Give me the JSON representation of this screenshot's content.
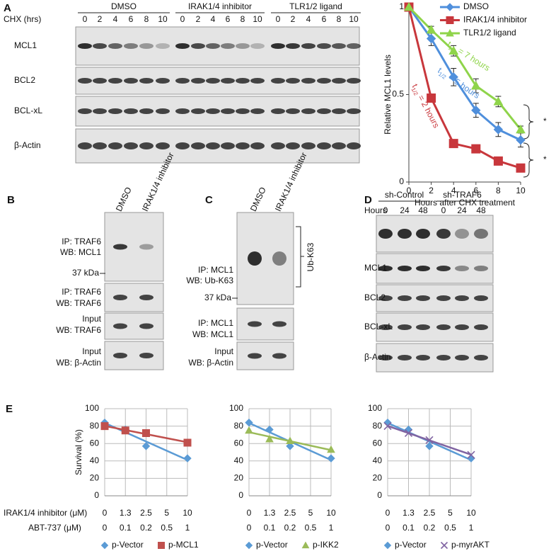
{
  "panel_a": {
    "label": "A",
    "treatment_label": "CHX (hrs)",
    "groups": [
      {
        "name": "DMSO",
        "lanes": [
          "0",
          "2",
          "4",
          "6",
          "8",
          "10"
        ]
      },
      {
        "name": "IRAK1/4 inhibitor",
        "lanes": [
          "0",
          "2",
          "4",
          "6",
          "8",
          "10"
        ]
      },
      {
        "name": "TLR1/2 ligand",
        "lanes": [
          "0",
          "2",
          "4",
          "6",
          "8",
          "10"
        ]
      }
    ],
    "rows": [
      "MCL1",
      "BCL2",
      "BCL-xL",
      "β-Actin"
    ]
  },
  "panel_b": {
    "label": "B",
    "columns": [
      "DMSO",
      "IRAK1/4 inhibitor"
    ],
    "rows": [
      [
        "IP: TRAF6",
        "WB: MCL1"
      ],
      [
        "IP: TRAF6",
        "WB: TRAF6"
      ],
      [
        "Input",
        "WB: TRAF6"
      ],
      [
        "Input",
        "WB: β-Actin"
      ]
    ],
    "marker": "37 kDa"
  },
  "panel_c": {
    "label": "C",
    "columns": [
      "DMSO",
      "IRAK1/4 inhibitor"
    ],
    "rows": [
      [
        "IP: MCL1",
        "WB: Ub-K63"
      ],
      [
        "IP: MCL1",
        "WB: MCL1"
      ],
      [
        "Input",
        "WB: β-Actin"
      ]
    ],
    "marker": "37 kDa",
    "bracket": "Ub-K63"
  },
  "panel_d": {
    "label": "D",
    "hours_label": "Hours",
    "groups": [
      {
        "name": "sh-Control",
        "lanes": [
          "0",
          "24",
          "48"
        ]
      },
      {
        "name": "sh-TRAF6",
        "lanes": [
          "0",
          "24",
          "48"
        ]
      }
    ],
    "rows": [
      "MCL1",
      "BCL2",
      "BCL-xL",
      "β-Actin"
    ]
  },
  "panel_e": {
    "label": "E",
    "x_labels": [
      "IRAK1/4 inhibitor (μM)",
      "ABT-737 (μM)"
    ]
  },
  "chart_data": [
    {
      "type": "line",
      "x_label": "Hours after CHX treatment",
      "y_label": "Relative MCL1 levels",
      "x": [
        0,
        2,
        4,
        6,
        8,
        10
      ],
      "xlim": [
        0,
        10
      ],
      "xticks": [
        0,
        2,
        4,
        6,
        8,
        10
      ],
      "ylim": [
        0,
        1
      ],
      "yticks": [
        0,
        0.5,
        1
      ],
      "legend": "upper right",
      "series": [
        {
          "name": "DMSO",
          "color": "#4f8fdc",
          "marker": "diamond",
          "values": [
            1,
            0.82,
            0.6,
            0.41,
            0.3,
            0.24
          ],
          "errors": [
            0,
            0.04,
            0.05,
            0.04,
            0.04,
            0.04
          ]
        },
        {
          "name": "IRAK1/4 inhibitor",
          "color": "#c8373c",
          "marker": "square",
          "values": [
            1,
            0.48,
            0.22,
            0.19,
            0.12,
            0.08
          ],
          "errors": [
            0,
            0,
            0.02,
            0.02,
            0.01,
            0.01
          ]
        },
        {
          "name": "TLR1/2 ligand",
          "color": "#8fd44a",
          "marker": "triangle",
          "values": [
            1,
            0.87,
            0.75,
            0.55,
            0.46,
            0.3
          ],
          "errors": [
            0,
            0.02,
            0.03,
            0.04,
            0.03,
            0.02
          ]
        }
      ],
      "annotations": [
        {
          "text": "t",
          "sub": "1/2",
          "rest": " = 7 hours",
          "color": "#8fd44a"
        },
        {
          "text": "t",
          "sub": "1/2",
          "rest": " = 5 hours",
          "color": "#4f8fdc"
        },
        {
          "text": "t",
          "sub": "1/2",
          "rest": " = 2 hours",
          "color": "#c8373c"
        }
      ],
      "significance": [
        "*",
        "*"
      ]
    },
    {
      "type": "scatter",
      "y_label": "Survival (%)",
      "categories": [
        "0",
        "1.3",
        "2.5",
        "5",
        "10"
      ],
      "categories2": [
        "0",
        "0.1",
        "0.2",
        "0.5",
        "1"
      ],
      "ylim": [
        0,
        100
      ],
      "yticks": [
        0,
        20,
        40,
        60,
        80,
        100
      ],
      "grid": true,
      "trendline": "linear",
      "legend": "bottom",
      "series": [
        {
          "name": "p-Vector",
          "color": "#5b9bd5",
          "marker": "diamond",
          "values": [
            84,
            76,
            57,
            null,
            43
          ]
        },
        {
          "name": "p-MCL1",
          "color": "#c0504d",
          "marker": "square",
          "values": [
            80,
            75,
            72,
            null,
            61
          ]
        }
      ]
    },
    {
      "type": "scatter",
      "categories": [
        "0",
        "1.3",
        "2.5",
        "5",
        "10"
      ],
      "categories2": [
        "0",
        "0.1",
        "0.2",
        "0.5",
        "1"
      ],
      "ylim": [
        0,
        100
      ],
      "yticks": [
        0,
        20,
        40,
        60,
        80,
        100
      ],
      "grid": true,
      "trendline": "linear",
      "legend": "bottom",
      "series": [
        {
          "name": "p-Vector",
          "color": "#5b9bd5",
          "marker": "diamond",
          "values": [
            84,
            76,
            57,
            null,
            43
          ]
        },
        {
          "name": "p-IKK2",
          "color": "#9bbb59",
          "marker": "triangle",
          "values": [
            75,
            65,
            63,
            null,
            53
          ]
        }
      ]
    },
    {
      "type": "scatter",
      "categories": [
        "0",
        "1.3",
        "2.5",
        "5",
        "10"
      ],
      "categories2": [
        "0",
        "0.1",
        "0.2",
        "0.5",
        "1"
      ],
      "ylim": [
        0,
        100
      ],
      "yticks": [
        0,
        20,
        40,
        60,
        80,
        100
      ],
      "grid": true,
      "trendline": "linear",
      "legend": "bottom",
      "series": [
        {
          "name": "p-Vector",
          "color": "#5b9bd5",
          "marker": "diamond",
          "values": [
            84,
            76,
            57,
            null,
            43
          ]
        },
        {
          "name": "p-myrAKT",
          "color": "#8064a2",
          "marker": "x",
          "values": [
            80,
            72,
            64,
            null,
            47
          ]
        }
      ]
    }
  ]
}
